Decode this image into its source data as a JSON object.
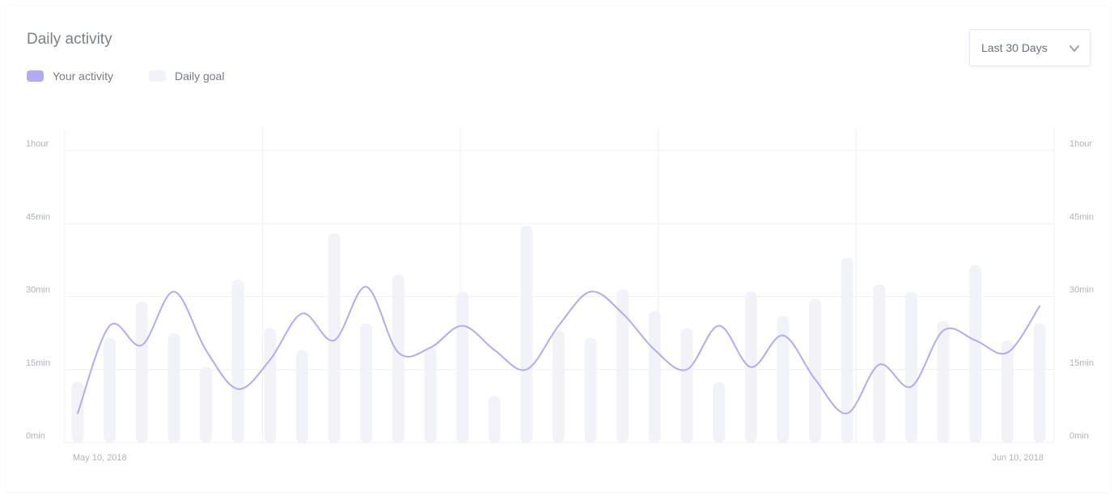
{
  "widget": {
    "title": "Daily activity",
    "range_selector": {
      "value": "Last 30 Days",
      "icon": "chevron-down-icon"
    }
  },
  "colors": {
    "activity": "#b3aaf5",
    "goal": "#f2f3f9",
    "grid": "#eef0f5"
  },
  "chart_data": {
    "type": "bar",
    "title": "Daily activity",
    "xlabel": "",
    "ylabel": "",
    "y_unit": "minutes",
    "ylim": [
      0,
      60
    ],
    "y_tick_values": [
      0,
      15,
      30,
      45,
      60
    ],
    "y_tick_labels": [
      "0min",
      "15min",
      "30min",
      "45min",
      "1hour"
    ],
    "y_tick_labels_right": [
      "0min",
      "15min",
      "30min",
      "45min",
      "1hour"
    ],
    "x_tick_labels": [
      "May 10, 2018",
      "Jun 10, 2018"
    ],
    "grid": true,
    "legend_position": "top-left",
    "series": [
      {
        "name": "Daily goal",
        "type": "bar",
        "values": [
          12.5,
          21.5,
          29,
          22.5,
          15.5,
          33.5,
          23.5,
          19,
          43,
          24.5,
          34.5,
          19.5,
          31,
          9.5,
          44.5,
          23,
          21.5,
          31.5,
          27,
          23.5,
          12.5,
          31,
          26,
          29.5,
          38,
          32.5,
          31,
          25,
          36.5,
          21,
          24.5
        ]
      },
      {
        "name": "Your activity",
        "type": "line",
        "smooth": true,
        "values": [
          6,
          24,
          20,
          31,
          19,
          11,
          17,
          26.5,
          21,
          32,
          18.5,
          19.5,
          24,
          19,
          15,
          24,
          31,
          26.5,
          19,
          15,
          24,
          15.5,
          22,
          13,
          6,
          16,
          11.5,
          23,
          21,
          18.5,
          28
        ]
      }
    ]
  }
}
